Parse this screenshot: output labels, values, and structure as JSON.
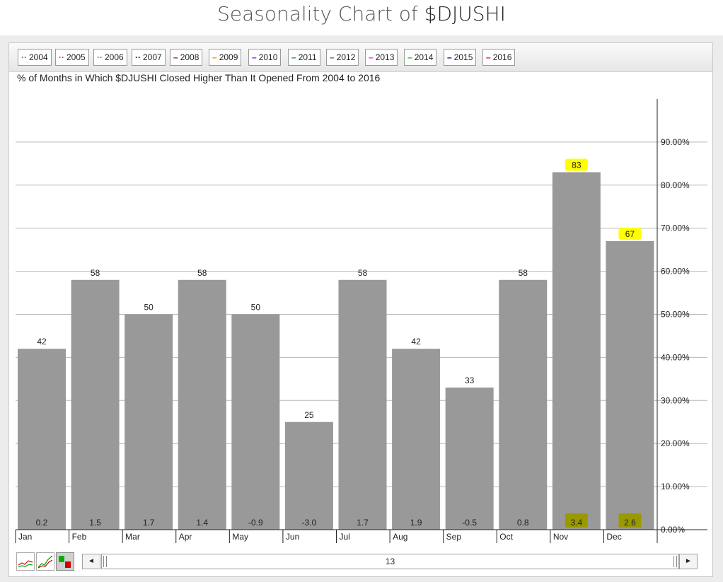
{
  "page": {
    "title_prefix": "Seasonality Chart of ",
    "title_ticker": "$DJUSHI"
  },
  "legend": [
    {
      "label": "2004",
      "symbol": "··",
      "color": "#6b6b8b"
    },
    {
      "label": "2005",
      "symbol": "··",
      "color": "#e010e0"
    },
    {
      "label": "2006",
      "symbol": "··",
      "color": "#20b020"
    },
    {
      "label": "2007",
      "symbol": "··",
      "color": "#000080"
    },
    {
      "label": "2008",
      "symbol": "–",
      "color": "#b00000"
    },
    {
      "label": "2009",
      "symbol": "–",
      "color": "#ff8000"
    },
    {
      "label": "2010",
      "symbol": "–",
      "color": "#8000ff"
    },
    {
      "label": "2011",
      "symbol": "–",
      "color": "#008080"
    },
    {
      "label": "2012",
      "symbol": "–",
      "color": "#555555"
    },
    {
      "label": "2013",
      "symbol": "–",
      "color": "#ff00ff"
    },
    {
      "label": "2014",
      "symbol": "–",
      "color": "#00c000"
    },
    {
      "label": "2015",
      "symbol": "–",
      "color": "#000080"
    },
    {
      "label": "2016",
      "symbol": "–",
      "color": "#e00000"
    }
  ],
  "chart_data": {
    "type": "bar",
    "title": "% of Months in Which $DJUSHI Closed Higher Than It Opened From 2004 to 2016",
    "categories": [
      "Jan",
      "Feb",
      "Mar",
      "Apr",
      "May",
      "Jun",
      "Jul",
      "Aug",
      "Sep",
      "Oct",
      "Nov",
      "Dec"
    ],
    "series": [
      {
        "values": [
          42,
          58,
          50,
          58,
          50,
          25,
          58,
          42,
          33,
          58,
          83,
          67
        ]
      }
    ],
    "value_labels": [
      "42",
      "58",
      "50",
      "58",
      "50",
      "25",
      "58",
      "42",
      "33",
      "58",
      "83",
      "67"
    ],
    "avg_returns": [
      "0.2",
      "1.5",
      "1.7",
      "1.4",
      "-0.9",
      "-3.0",
      "1.7",
      "1.9",
      "-0.5",
      "0.8",
      "3.4",
      "2.6"
    ],
    "highlighted": [
      "Nov",
      "Dec"
    ],
    "y_ticks": [
      "0.00%",
      "10.00%",
      "20.00%",
      "30.00%",
      "40.00%",
      "50.00%",
      "60.00%",
      "70.00%",
      "80.00%",
      "90.00%"
    ],
    "ylim": [
      0,
      100
    ],
    "grid": true,
    "bar_color": "#999999",
    "highlight_color": "#ffff00"
  },
  "controls": {
    "prev_label": "◄",
    "next_label": "►",
    "period_count": "13"
  }
}
